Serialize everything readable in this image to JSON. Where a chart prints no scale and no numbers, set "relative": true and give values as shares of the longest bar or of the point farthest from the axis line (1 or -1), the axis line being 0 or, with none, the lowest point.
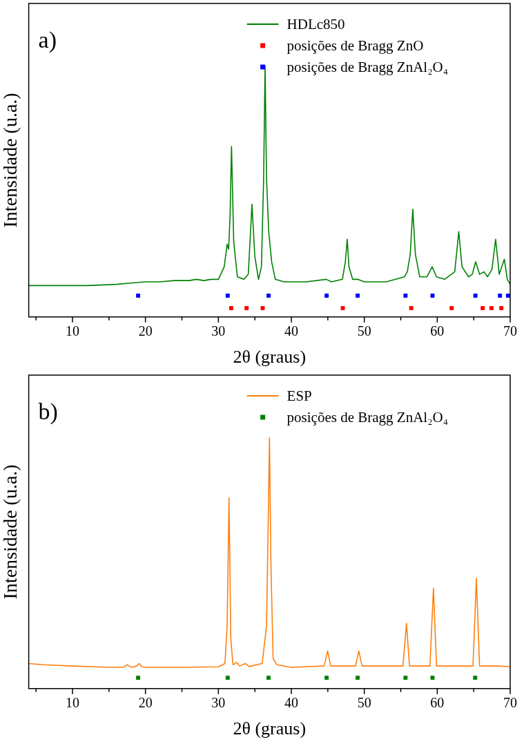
{
  "chart_data": [
    {
      "type": "line",
      "relative": true,
      "xlabel": "2θ (graus)",
      "ylabel": "Intensidade (u.a.)",
      "annotations": [
        "a)"
      ],
      "xlim": [
        4,
        70
      ],
      "xticks": [
        {
          "value": 5,
          "label": null
        },
        10,
        {
          "value": 15,
          "label": null
        },
        20,
        {
          "value": 25,
          "label": null
        },
        30,
        {
          "value": 35,
          "label": null
        },
        40,
        {
          "value": 45,
          "label": null
        },
        50,
        {
          "value": 55,
          "label": null
        },
        60,
        {
          "value": 65,
          "label": null
        },
        70
      ],
      "legend": "top right",
      "grid": false,
      "series": [
        {
          "name": "HDLc850",
          "color": "#008000",
          "x": [
            4,
            8,
            12,
            16,
            18,
            20,
            22,
            24,
            26,
            27,
            28,
            29,
            30,
            30.8,
            31.2,
            31.4,
            31.6,
            31.8,
            32.1,
            32.6,
            33.5,
            34.1,
            34.6,
            35.0,
            35.5,
            35.9,
            36.2,
            36.4,
            36.6,
            36.9,
            37.3,
            37.8,
            39,
            42,
            44.8,
            45.5,
            47.0,
            47.4,
            47.66,
            47.9,
            48.4,
            49.1,
            50,
            53,
            55.5,
            55.9,
            56.3,
            56.65,
            57.0,
            57.6,
            58.6,
            59.3,
            59.9,
            61,
            62.4,
            62.95,
            63.4,
            64.3,
            64.8,
            65.26,
            65.8,
            66.4,
            66.9,
            67.5,
            68.0,
            68.5,
            69.2,
            69.6,
            70
          ],
          "values": [
            0.125,
            0.125,
            0.125,
            0.13,
            0.135,
            0.14,
            0.14,
            0.145,
            0.145,
            0.15,
            0.145,
            0.15,
            0.15,
            0.2,
            0.29,
            0.27,
            0.4,
            0.68,
            0.3,
            0.16,
            0.15,
            0.17,
            0.45,
            0.24,
            0.15,
            0.2,
            0.55,
            1.0,
            0.55,
            0.34,
            0.22,
            0.15,
            0.14,
            0.14,
            0.15,
            0.14,
            0.15,
            0.22,
            0.31,
            0.2,
            0.15,
            0.15,
            0.14,
            0.14,
            0.16,
            0.18,
            0.25,
            0.43,
            0.25,
            0.16,
            0.16,
            0.2,
            0.16,
            0.15,
            0.18,
            0.34,
            0.2,
            0.16,
            0.17,
            0.22,
            0.17,
            0.18,
            0.16,
            0.19,
            0.31,
            0.17,
            0.23,
            0.15,
            0.13
          ]
        },
        {
          "type": "scatter",
          "marker": "square",
          "name": "posições de Bragg ZnO",
          "color": "#ff0000",
          "x": [
            31.75,
            33.86,
            36.07,
            47.05,
            56.43,
            61.98,
            66.23,
            67.43,
            68.79
          ],
          "values": [
            0.035,
            0.035,
            0.035,
            0.035,
            0.035,
            0.035,
            0.035,
            0.035,
            0.035
          ]
        },
        {
          "type": "scatter",
          "marker": "square",
          "name": "posições de Bragg ZnAl₂O₄",
          "color": "#0000ff",
          "x": [
            19.0,
            31.27,
            36.88,
            44.84,
            49.09,
            55.65,
            59.35,
            65.23,
            68.6,
            69.7
          ],
          "values": [
            0.085,
            0.085,
            0.085,
            0.085,
            0.085,
            0.085,
            0.085,
            0.085,
            0.085,
            0.085
          ]
        }
      ]
    },
    {
      "type": "line",
      "relative": true,
      "xlabel": "2θ (graus)",
      "ylabel": "Intensidade (u.a.)",
      "annotations": [
        "b)"
      ],
      "xlim": [
        4,
        70
      ],
      "xticks": [
        {
          "value": 5,
          "label": null
        },
        10,
        {
          "value": 15,
          "label": null
        },
        20,
        {
          "value": 25,
          "label": null
        },
        30,
        {
          "value": 35,
          "label": null
        },
        40,
        {
          "value": 45,
          "label": null
        },
        50,
        {
          "value": 55,
          "label": null
        },
        60,
        {
          "value": 65,
          "label": null
        },
        70
      ],
      "legend": "top right",
      "grid": false,
      "series": [
        {
          "name": "ESP",
          "color": "#ff7f0e",
          "x": [
            4,
            6,
            10,
            15,
            17,
            17.5,
            18,
            18.8,
            19.15,
            19.5,
            20,
            25,
            30,
            30.9,
            31.2,
            31.46,
            31.7,
            32.0,
            32.5,
            32.9,
            33.7,
            34.2,
            36.0,
            36.6,
            36.85,
            37.0,
            37.2,
            37.5,
            38,
            40,
            44.5,
            44.97,
            45.4,
            48.8,
            49.25,
            49.7,
            55.3,
            55.78,
            56.2,
            59.0,
            59.48,
            59.9,
            64.9,
            65.36,
            65.8,
            68.5,
            70
          ],
          "values": [
            0.1,
            0.095,
            0.09,
            0.085,
            0.085,
            0.095,
            0.085,
            0.09,
            0.1,
            0.087,
            0.085,
            0.085,
            0.087,
            0.1,
            0.25,
            0.76,
            0.2,
            0.095,
            0.105,
            0.09,
            0.1,
            0.088,
            0.1,
            0.25,
            0.7,
            1.0,
            0.5,
            0.12,
            0.095,
            0.085,
            0.09,
            0.15,
            0.09,
            0.09,
            0.15,
            0.09,
            0.09,
            0.26,
            0.09,
            0.09,
            0.4,
            0.09,
            0.09,
            0.44,
            0.09,
            0.09,
            0.087
          ]
        },
        {
          "type": "scatter",
          "marker": "square",
          "name": "posições de Bragg ZnAl₂O₄",
          "color": "#008000",
          "x": [
            19.0,
            31.27,
            36.87,
            44.84,
            49.09,
            55.65,
            59.35,
            65.2
          ],
          "values": [
            0.043,
            0.043,
            0.043,
            0.043,
            0.043,
            0.043,
            0.043,
            0.043
          ]
        }
      ]
    }
  ]
}
